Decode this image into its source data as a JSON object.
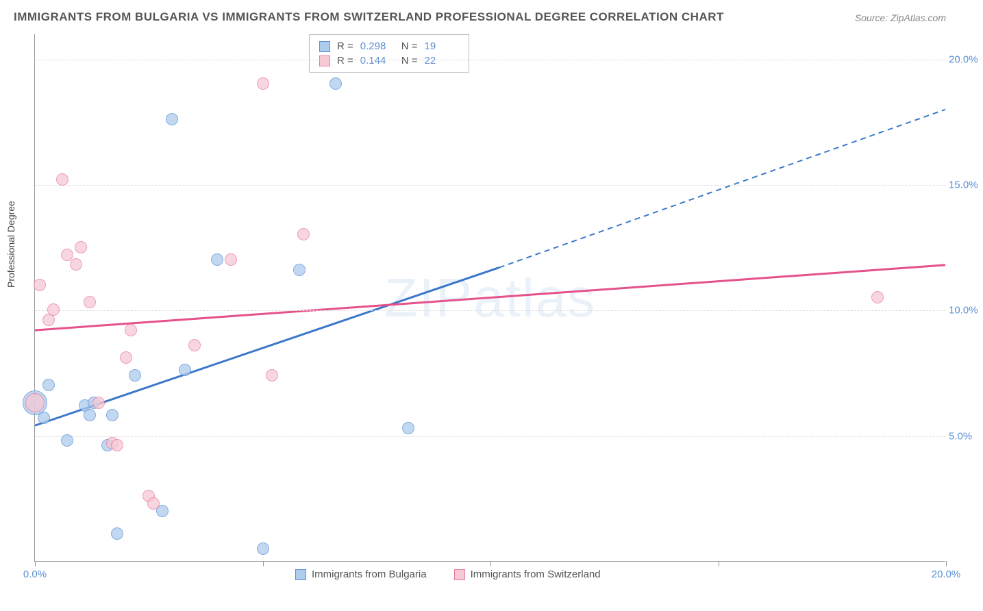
{
  "title": "IMMIGRANTS FROM BULGARIA VS IMMIGRANTS FROM SWITZERLAND PROFESSIONAL DEGREE CORRELATION CHART",
  "source": "Source: ZipAtlas.com",
  "ylabel": "Professional Degree",
  "watermark_a": "ZIP",
  "watermark_b": "atlas",
  "chart": {
    "type": "scatter",
    "xlim": [
      0,
      20
    ],
    "ylim": [
      0,
      21
    ],
    "yticks": [
      5,
      10,
      15,
      20
    ],
    "ytick_labels": [
      "5.0%",
      "10.0%",
      "15.0%",
      "20.0%"
    ],
    "xticks": [
      0,
      5,
      10,
      15,
      20
    ],
    "xtick_labels_shown": {
      "0": "0.0%",
      "20": "20.0%"
    },
    "grid_color": "#dddddd",
    "axis_color": "#999999",
    "tick_label_color": "#5b8fd6",
    "background": "#ffffff",
    "series": [
      {
        "name": "Immigrants from Bulgaria",
        "key": "bulgaria",
        "fill": "#aeccec",
        "stroke": "#5b8fd6",
        "line_color": "#3b78c9",
        "r_value": "0.298",
        "n_value": "19",
        "trend": {
          "x1": 0,
          "y1": 5.4,
          "x2": 10.2,
          "y2": 11.7,
          "dash_to_x": 20,
          "dash_to_y": 18.0
        },
        "points": [
          {
            "x": 0.2,
            "y": 5.7,
            "r": 9
          },
          {
            "x": 0.3,
            "y": 7.0,
            "r": 9
          },
          {
            "x": 0.7,
            "y": 4.8,
            "r": 9
          },
          {
            "x": 1.1,
            "y": 6.2,
            "r": 9
          },
          {
            "x": 1.2,
            "y": 5.8,
            "r": 9
          },
          {
            "x": 1.6,
            "y": 4.6,
            "r": 9
          },
          {
            "x": 1.7,
            "y": 5.8,
            "r": 9
          },
          {
            "x": 1.8,
            "y": 1.1,
            "r": 9
          },
          {
            "x": 2.2,
            "y": 7.4,
            "r": 9
          },
          {
            "x": 2.8,
            "y": 2.0,
            "r": 9
          },
          {
            "x": 3.0,
            "y": 17.6,
            "r": 9
          },
          {
            "x": 3.3,
            "y": 7.6,
            "r": 9
          },
          {
            "x": 4.0,
            "y": 12.0,
            "r": 9
          },
          {
            "x": 5.0,
            "y": 0.5,
            "r": 9
          },
          {
            "x": 5.8,
            "y": 11.6,
            "r": 9
          },
          {
            "x": 6.6,
            "y": 19.0,
            "r": 9
          },
          {
            "x": 8.2,
            "y": 5.3,
            "r": 9
          },
          {
            "x": 0.0,
            "y": 6.3,
            "r": 18
          },
          {
            "x": 1.3,
            "y": 6.3,
            "r": 9
          }
        ]
      },
      {
        "name": "Immigrants from Switzerland",
        "key": "switzerland",
        "fill": "#f6c9d5",
        "stroke": "#e77aa0",
        "line_color": "#e5518a",
        "r_value": "0.144",
        "n_value": "22",
        "trend": {
          "x1": 0,
          "y1": 9.2,
          "x2": 20,
          "y2": 11.8
        },
        "points": [
          {
            "x": 0.0,
            "y": 6.3,
            "r": 14
          },
          {
            "x": 0.1,
            "y": 11.0,
            "r": 9
          },
          {
            "x": 0.3,
            "y": 9.6,
            "r": 9
          },
          {
            "x": 0.4,
            "y": 10.0,
            "r": 9
          },
          {
            "x": 0.6,
            "y": 15.2,
            "r": 9
          },
          {
            "x": 0.7,
            "y": 12.2,
            "r": 9
          },
          {
            "x": 1.0,
            "y": 12.5,
            "r": 9
          },
          {
            "x": 1.2,
            "y": 10.3,
            "r": 9
          },
          {
            "x": 1.7,
            "y": 4.7,
            "r": 9
          },
          {
            "x": 1.8,
            "y": 4.6,
            "r": 9
          },
          {
            "x": 2.0,
            "y": 8.1,
            "r": 9
          },
          {
            "x": 2.1,
            "y": 9.2,
            "r": 9
          },
          {
            "x": 2.5,
            "y": 2.6,
            "r": 9
          },
          {
            "x": 2.6,
            "y": 2.3,
            "r": 9
          },
          {
            "x": 3.5,
            "y": 8.6,
            "r": 9
          },
          {
            "x": 4.3,
            "y": 12.0,
            "r": 9
          },
          {
            "x": 5.0,
            "y": 19.0,
            "r": 9
          },
          {
            "x": 5.2,
            "y": 7.4,
            "r": 9
          },
          {
            "x": 5.9,
            "y": 13.0,
            "r": 9
          },
          {
            "x": 18.5,
            "y": 10.5,
            "r": 9
          },
          {
            "x": 1.4,
            "y": 6.3,
            "r": 9
          },
          {
            "x": 0.9,
            "y": 11.8,
            "r": 9
          }
        ]
      }
    ]
  },
  "legend": {
    "bulgaria": "Immigrants from Bulgaria",
    "switzerland": "Immigrants from Switzerland"
  },
  "stat_labels": {
    "r": "R =",
    "n": "N ="
  }
}
